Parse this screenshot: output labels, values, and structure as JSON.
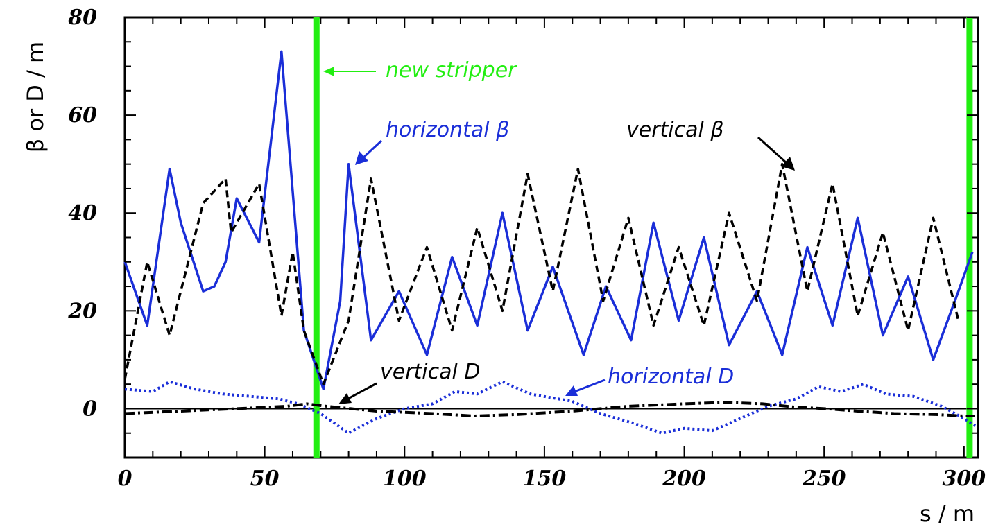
{
  "chart_data": {
    "type": "line",
    "title": "",
    "xlabel": "s  / m",
    "ylabel": "β or D / m",
    "xlim": [
      0,
      305
    ],
    "ylim": [
      -10,
      80
    ],
    "xticks": [
      0,
      50,
      100,
      150,
      200,
      250,
      300
    ],
    "yticks": [
      0,
      20,
      40,
      60,
      80
    ],
    "grid": false,
    "series": [
      {
        "key": "hbeta",
        "color": "#1a2ed8",
        "style": "solid",
        "points": [
          [
            0,
            30
          ],
          [
            8,
            17
          ],
          [
            16,
            49
          ],
          [
            20,
            38
          ],
          [
            28,
            24
          ],
          [
            32,
            25
          ],
          [
            36,
            30
          ],
          [
            40,
            43
          ],
          [
            48,
            34
          ],
          [
            56,
            73
          ],
          [
            64,
            16
          ],
          [
            71,
            4
          ],
          [
            77,
            22
          ],
          [
            80,
            50
          ],
          [
            88,
            14
          ],
          [
            98,
            24
          ],
          [
            108,
            11
          ],
          [
            117,
            31
          ],
          [
            126,
            17
          ],
          [
            135,
            40
          ],
          [
            144,
            16
          ],
          [
            153,
            29
          ],
          [
            164,
            11
          ],
          [
            172,
            25
          ],
          [
            181,
            14
          ],
          [
            189,
            38
          ],
          [
            198,
            18
          ],
          [
            207,
            35
          ],
          [
            216,
            13
          ],
          [
            226,
            24
          ],
          [
            235,
            11
          ],
          [
            244,
            33
          ],
          [
            253,
            17
          ],
          [
            262,
            39
          ],
          [
            271,
            15
          ],
          [
            280,
            27
          ],
          [
            289,
            10
          ],
          [
            298,
            24
          ],
          [
            303,
            32
          ]
        ]
      },
      {
        "key": "vbeta",
        "color": "#000000",
        "style": "dashed",
        "points": [
          [
            0,
            6
          ],
          [
            8,
            30
          ],
          [
            16,
            15
          ],
          [
            28,
            42
          ],
          [
            36,
            47
          ],
          [
            38,
            36
          ],
          [
            48,
            46
          ],
          [
            56,
            19
          ],
          [
            60,
            32
          ],
          [
            64,
            16
          ],
          [
            71,
            5
          ],
          [
            80,
            18
          ],
          [
            88,
            47
          ],
          [
            98,
            18
          ],
          [
            108,
            33
          ],
          [
            117,
            16
          ],
          [
            126,
            37
          ],
          [
            135,
            20
          ],
          [
            144,
            48
          ],
          [
            153,
            24
          ],
          [
            162,
            49
          ],
          [
            171,
            22
          ],
          [
            180,
            39
          ],
          [
            189,
            17
          ],
          [
            198,
            33
          ],
          [
            207,
            17
          ],
          [
            216,
            40
          ],
          [
            226,
            22
          ],
          [
            235,
            50
          ],
          [
            244,
            24
          ],
          [
            253,
            46
          ],
          [
            262,
            19
          ],
          [
            271,
            36
          ],
          [
            280,
            16
          ],
          [
            289,
            39
          ],
          [
            298,
            18
          ]
        ]
      },
      {
        "key": "hD",
        "color": "#1a2ed8",
        "style": "dotted",
        "points": [
          [
            0,
            4
          ],
          [
            10,
            3.5
          ],
          [
            16,
            5.5
          ],
          [
            25,
            4
          ],
          [
            35,
            3
          ],
          [
            45,
            2.5
          ],
          [
            55,
            2
          ],
          [
            62,
            1
          ],
          [
            70,
            -1
          ],
          [
            80,
            -5
          ],
          [
            90,
            -2
          ],
          [
            100,
            0
          ],
          [
            110,
            1
          ],
          [
            118,
            3.5
          ],
          [
            126,
            3
          ],
          [
            135,
            5.5
          ],
          [
            145,
            3
          ],
          [
            160,
            1.5
          ],
          [
            170,
            -1
          ],
          [
            182,
            -3
          ],
          [
            192,
            -5
          ],
          [
            200,
            -4
          ],
          [
            210,
            -4.5
          ],
          [
            220,
            -2
          ],
          [
            230,
            0.5
          ],
          [
            240,
            2
          ],
          [
            248,
            4.5
          ],
          [
            256,
            3.5
          ],
          [
            264,
            5
          ],
          [
            272,
            3
          ],
          [
            282,
            2.5
          ],
          [
            292,
            0.5
          ],
          [
            300,
            -2
          ],
          [
            304,
            -3.5
          ]
        ]
      },
      {
        "key": "vD",
        "color": "#000000",
        "style": "dashdot",
        "points": [
          [
            0,
            -1
          ],
          [
            20,
            -0.5
          ],
          [
            40,
            0
          ],
          [
            58,
            0.5
          ],
          [
            65,
            1
          ],
          [
            72,
            0.5
          ],
          [
            90,
            -0.5
          ],
          [
            110,
            -1
          ],
          [
            125,
            -1.5
          ],
          [
            140,
            -1.2
          ],
          [
            160,
            -0.5
          ],
          [
            180,
            0.5
          ],
          [
            200,
            1
          ],
          [
            215,
            1.3
          ],
          [
            228,
            1
          ],
          [
            240,
            0.3
          ],
          [
            250,
            0
          ],
          [
            262,
            -0.5
          ],
          [
            275,
            -1
          ],
          [
            290,
            -1.2
          ],
          [
            300,
            -1.5
          ],
          [
            304,
            -1.5
          ]
        ]
      }
    ],
    "markers": [
      {
        "key": "stripper1",
        "x": 68.5,
        "color": "#22ee11"
      },
      {
        "key": "stripper2",
        "x": 302,
        "color": "#22ee11"
      }
    ],
    "annotations": {
      "new_stripper": "new stripper",
      "horizontal_beta": "horizontal β",
      "vertical_beta": "vertical β",
      "vertical_D": "vertical D",
      "horizontal_D": "horizontal D"
    },
    "colors": {
      "annotation_green": "#22ee11",
      "annotation_blue": "#1a2ed8",
      "annotation_black": "#000000"
    }
  }
}
